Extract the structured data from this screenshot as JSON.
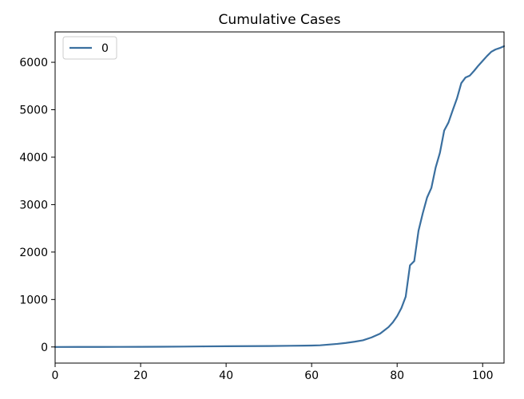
{
  "chart_data": {
    "type": "line",
    "title": "Cumulative Cases",
    "xlabel": "",
    "ylabel": "",
    "xlim": [
      0,
      105
    ],
    "ylim": [
      -340,
      6640
    ],
    "xticks": [
      0,
      20,
      40,
      60,
      80,
      100
    ],
    "yticks": [
      0,
      1000,
      2000,
      3000,
      4000,
      5000,
      6000
    ],
    "grid": false,
    "legend": {
      "position": "top-left",
      "entries": [
        "0"
      ]
    },
    "series": [
      {
        "name": "0",
        "color": "#3a6f9f",
        "x": [
          0,
          5,
          10,
          15,
          20,
          25,
          30,
          35,
          40,
          45,
          50,
          55,
          60,
          62,
          64,
          66,
          68,
          70,
          72,
          74,
          76,
          77,
          78,
          79,
          80,
          81,
          82,
          83,
          84,
          85,
          86,
          87,
          88,
          89,
          90,
          91,
          92,
          93,
          94,
          95,
          96,
          97,
          98,
          99,
          100,
          101,
          102,
          103,
          104,
          105
        ],
        "values": [
          0,
          1,
          1,
          2,
          3,
          5,
          8,
          12,
          15,
          17,
          20,
          25,
          30,
          35,
          50,
          65,
          85,
          110,
          140,
          200,
          280,
          350,
          420,
          520,
          650,
          820,
          1060,
          1720,
          1810,
          2450,
          2820,
          3150,
          3350,
          3780,
          4090,
          4560,
          4730,
          4990,
          5240,
          5560,
          5680,
          5720,
          5820,
          5930,
          6030,
          6130,
          6220,
          6270,
          6300,
          6340
        ]
      }
    ]
  }
}
